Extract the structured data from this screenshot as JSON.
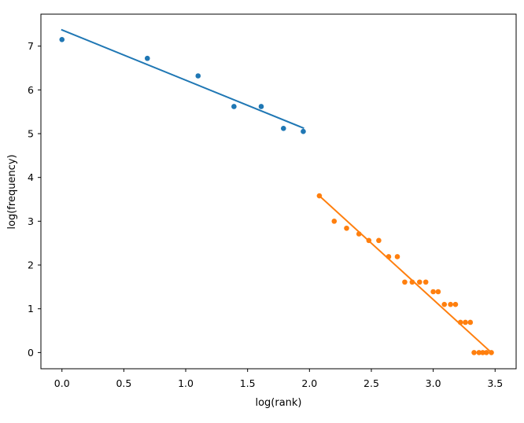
{
  "chart_data": {
    "type": "scatter",
    "xlabel": "log(rank)",
    "ylabel": "log(frequency)",
    "xlim": [
      -0.17,
      3.67
    ],
    "ylim": [
      -0.37,
      7.73
    ],
    "xticks": [
      0.0,
      0.5,
      1.0,
      1.5,
      2.0,
      2.5,
      3.0,
      3.5
    ],
    "xtick_labels": [
      "0.0",
      "0.5",
      "1.0",
      "1.5",
      "2.0",
      "2.5",
      "3.0",
      "3.5"
    ],
    "yticks": [
      0,
      1,
      2,
      3,
      4,
      5,
      6,
      7
    ],
    "ytick_labels": [
      "0",
      "1",
      "2",
      "3",
      "4",
      "5",
      "6",
      "7"
    ],
    "grid": false,
    "legend": "none",
    "series": [
      {
        "color": "#1f77b4",
        "points": [
          [
            0.0,
            7.15
          ],
          [
            0.69,
            6.72
          ],
          [
            1.1,
            6.32
          ],
          [
            1.39,
            5.62
          ],
          [
            1.61,
            5.62
          ],
          [
            1.79,
            5.12
          ],
          [
            1.95,
            5.05
          ]
        ],
        "fit_line": [
          [
            0.0,
            7.37
          ],
          [
            1.95,
            5.13
          ]
        ]
      },
      {
        "color": "#ff7f0e",
        "points": [
          [
            2.08,
            3.58
          ],
          [
            2.2,
            3.0
          ],
          [
            2.3,
            2.84
          ],
          [
            2.4,
            2.71
          ],
          [
            2.48,
            2.56
          ],
          [
            2.56,
            2.56
          ],
          [
            2.64,
            2.19
          ],
          [
            2.71,
            2.19
          ],
          [
            2.77,
            1.61
          ],
          [
            2.83,
            1.61
          ],
          [
            2.89,
            1.61
          ],
          [
            2.94,
            1.61
          ],
          [
            3.0,
            1.39
          ],
          [
            3.04,
            1.39
          ],
          [
            3.09,
            1.1
          ],
          [
            3.14,
            1.1
          ],
          [
            3.18,
            1.1
          ],
          [
            3.22,
            0.69
          ],
          [
            3.26,
            0.69
          ],
          [
            3.3,
            0.69
          ],
          [
            3.33,
            0.0
          ],
          [
            3.37,
            0.0
          ],
          [
            3.4,
            0.0
          ],
          [
            3.43,
            0.0
          ],
          [
            3.47,
            0.0
          ]
        ],
        "fit_line": [
          [
            2.08,
            3.58
          ],
          [
            3.47,
            0.0
          ]
        ]
      }
    ]
  }
}
